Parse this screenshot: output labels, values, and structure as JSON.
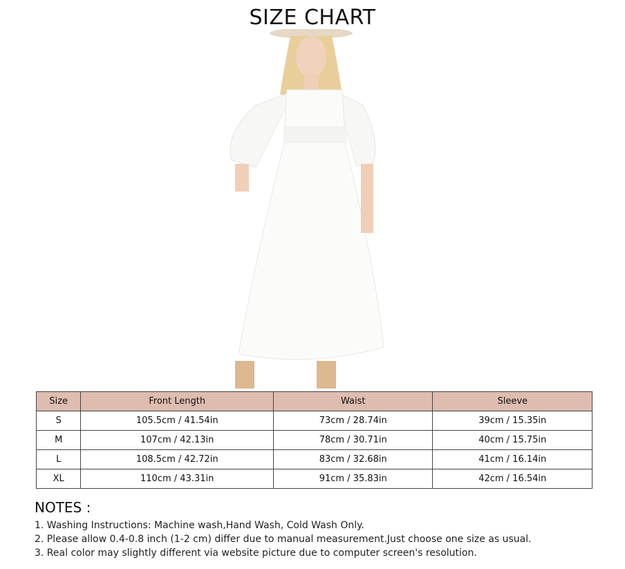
{
  "title": "SIZE CHART",
  "colors": {
    "header_bg": "#dfbcb0",
    "border": "#444444"
  },
  "photo": {
    "description_icon": "model-white-dress-photo"
  },
  "table": {
    "headers": [
      "Size",
      "Front Length",
      "Waist",
      "Sleeve"
    ],
    "rows": [
      [
        "S",
        "105.5cm / 41.54in",
        "73cm / 28.74in",
        "39cm / 15.35in"
      ],
      [
        "M",
        "107cm / 42.13in",
        "78cm / 30.71in",
        "40cm / 15.75in"
      ],
      [
        "L",
        "108.5cm / 42.72in",
        "83cm / 32.68in",
        "41cm / 16.14in"
      ],
      [
        "XL",
        "110cm / 43.31in",
        "91cm / 35.83in",
        "42cm / 16.54in"
      ]
    ]
  },
  "notes": {
    "heading": "NOTES :",
    "items": [
      "1. Washing Instructions: Machine wash,Hand Wash, Cold Wash Only.",
      "2. Please allow 0.4-0.8 inch (1-2 cm) differ due to manual measurement.Just choose one size as usual.",
      "3. Real color may slightly different via website picture due to computer screen's resolution."
    ]
  }
}
